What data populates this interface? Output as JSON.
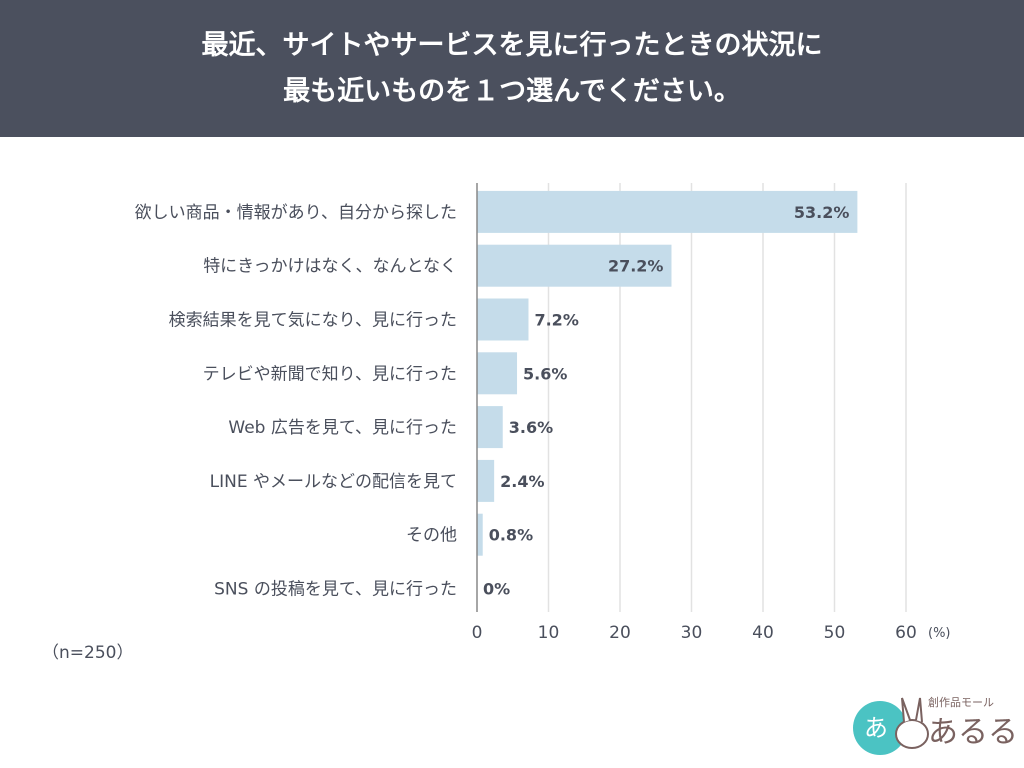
{
  "header": {
    "title_line1": "最近、サイトやサービスを見に行ったときの状況に",
    "title_line2": "最も近いものを１つ選んでください。"
  },
  "note": "（n=250）",
  "logo": {
    "text": "あるる",
    "tagline": "創作品モール",
    "mark": "あ"
  },
  "colors": {
    "bar": "#c5dcea",
    "header": "#4b505e",
    "text": "#4a4f5c",
    "grid": "#e2e2e2"
  },
  "chart_data": {
    "type": "bar",
    "orientation": "horizontal",
    "categories": [
      "欲しい商品・情報があり、自分から探した",
      "特にきっかけはなく、なんとなく",
      "検索結果を見て気になり、見に行った",
      "テレビや新聞で知り、見に行った",
      "Web 広告を見て、見に行った",
      "LINE やメールなどの配信を見て",
      "その他",
      "SNS の投稿を見て、見に行った"
    ],
    "values": [
      53.2,
      27.2,
      7.2,
      5.6,
      3.6,
      2.4,
      0.8,
      0
    ],
    "data_labels": [
      "53.2%",
      "27.2%",
      "7.2%",
      "5.6%",
      "3.6%",
      "2.4%",
      "0.8%",
      "0%"
    ],
    "xlim": [
      0,
      60
    ],
    "ticks": [
      "0",
      "10",
      "20",
      "30",
      "40",
      "50",
      "60"
    ],
    "unit_label": "(%)",
    "grid": true
  }
}
